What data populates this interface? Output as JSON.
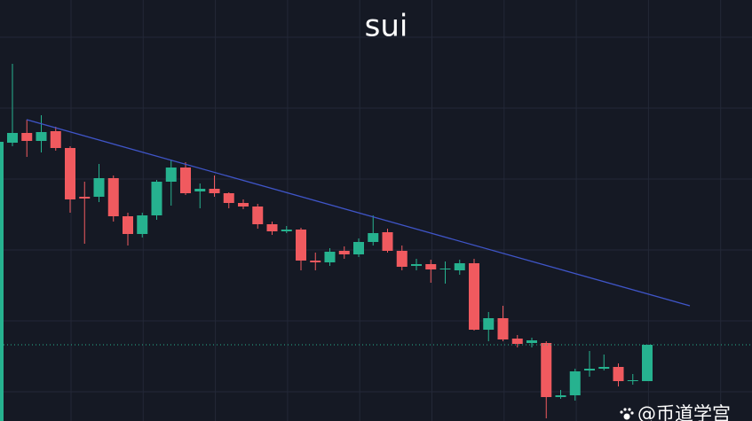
{
  "chart_data": {
    "type": "candlestick",
    "title": "sui",
    "watermark": "@币道学宫",
    "up_color": "#26b28f",
    "down_color": "#f05a5f",
    "ylim": [
      0,
      475
    ],
    "open": [
      314,
      325,
      316,
      327,
      308,
      253,
      253,
      274,
      231,
      211,
      232,
      270,
      286,
      259,
      262,
      257,
      246,
      242,
      222,
      214,
      216,
      181,
      179,
      192,
      188,
      202,
      213,
      192,
      175,
      177,
      171,
      170,
      178,
      103,
      116,
      93,
      88,
      88,
      27,
      29,
      57,
      59,
      61,
      45,
      45
    ],
    "high": [
      403,
      340,
      345,
      332,
      310,
      270,
      290,
      277,
      235,
      235,
      272,
      295,
      292,
      268,
      277,
      258,
      250,
      245,
      225,
      220,
      218,
      190,
      195,
      197,
      206,
      232,
      217,
      198,
      183,
      182,
      180,
      182,
      183,
      123,
      130,
      97,
      94,
      90,
      35,
      59,
      79,
      75,
      65,
      53,
      86
    ],
    "low": [
      310,
      298,
      303,
      305,
      235,
      200,
      247,
      225,
      198,
      207,
      227,
      243,
      255,
      240,
      253,
      240,
      239,
      217,
      210,
      212,
      170,
      170,
      175,
      183,
      185,
      198,
      190,
      170,
      170,
      156,
      155,
      165,
      102,
      90,
      90,
      83,
      83,
      3,
      25,
      23,
      50,
      57,
      39,
      41,
      45
    ],
    "close": [
      325,
      316,
      326,
      308,
      250,
      251,
      274,
      231,
      211,
      232,
      270,
      286,
      257,
      262,
      257,
      246,
      242,
      222,
      214,
      216,
      181,
      179,
      191,
      188,
      202,
      212,
      192,
      174,
      177,
      171,
      172,
      178,
      103,
      116,
      92,
      87,
      91,
      27,
      29,
      56,
      59,
      61,
      45,
      46,
      86
    ]
  }
}
